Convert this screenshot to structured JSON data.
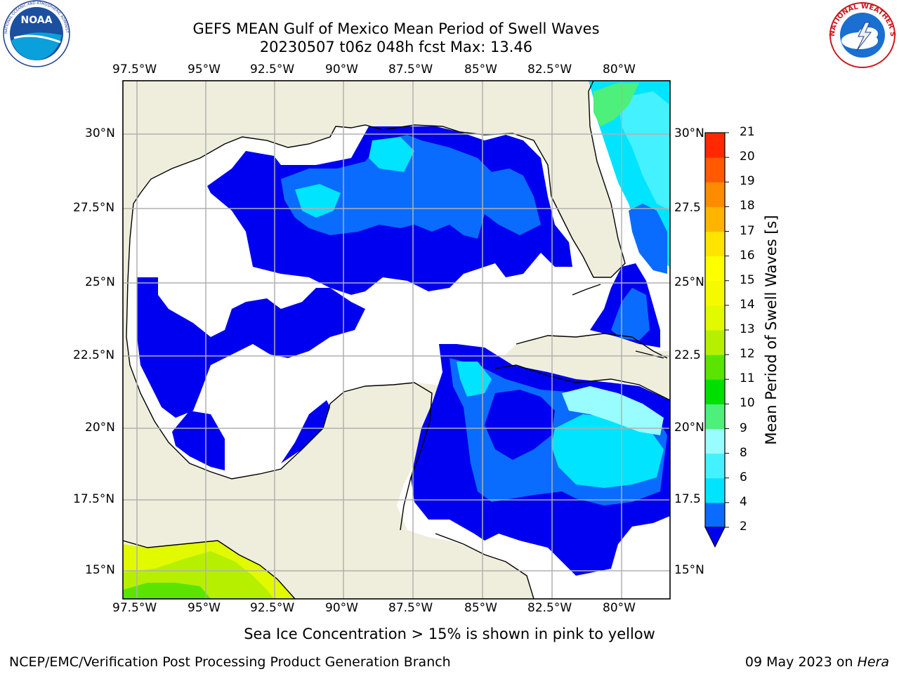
{
  "header": {
    "title_line1": "GEFS MEAN Gulf of Mexico Mean Period of Swell Waves",
    "title_line2": "20230507 t06z 048h fcst   Max: 13.46"
  },
  "logos": {
    "noaa_text": "NOAA",
    "noaa_ring": "NATIONAL OCEANIC AND ATMOSPHERIC ADMINISTRATION · U.S. DEPARTMENT OF COMMERCE",
    "nws_ring": "NATIONAL WEATHER SERVICE"
  },
  "map": {
    "lon_labels": [
      "97.5°W",
      "95°W",
      "92.5°W",
      "90°W",
      "87.5°W",
      "85°W",
      "82.5°W",
      "80°W"
    ],
    "lat_labels": [
      "30°N",
      "27.5°N",
      "25°N",
      "22.5°N",
      "20°N",
      "17.5°N",
      "15°N"
    ],
    "lat_labels_right": [
      "30°N",
      "27.5",
      "25°N",
      "22.5",
      "20°N",
      "17.5",
      "15°N"
    ],
    "land_color": "#efeedc",
    "ocean_color": "#ffffff"
  },
  "colorbar": {
    "label": "Mean Period of Swell Waves [s]",
    "ticks": [
      "2",
      "4",
      "6",
      "8",
      "9",
      "10",
      "11",
      "12",
      "13",
      "14",
      "15",
      "16",
      "17",
      "18",
      "19",
      "20",
      "21"
    ],
    "colors": [
      "#0a6cff",
      "#00e4ff",
      "#44f2ff",
      "#99fcff",
      "#4cf07a",
      "#00e000",
      "#5ae400",
      "#b6f000",
      "#e2fa00",
      "#f6fa00",
      "#ffff00",
      "#ffe400",
      "#ffb400",
      "#ff8c00",
      "#ff5a00",
      "#ff2800",
      "#0000f0"
    ],
    "under_color": "#0000f0"
  },
  "footer": {
    "caption": "Sea Ice Concentration > 15% is shown in pink to yellow",
    "left": "NCEP/EMC/Verification Post Processing Product Generation Branch",
    "right_date": "09 May 2023 on ",
    "right_host": "Hera"
  }
}
